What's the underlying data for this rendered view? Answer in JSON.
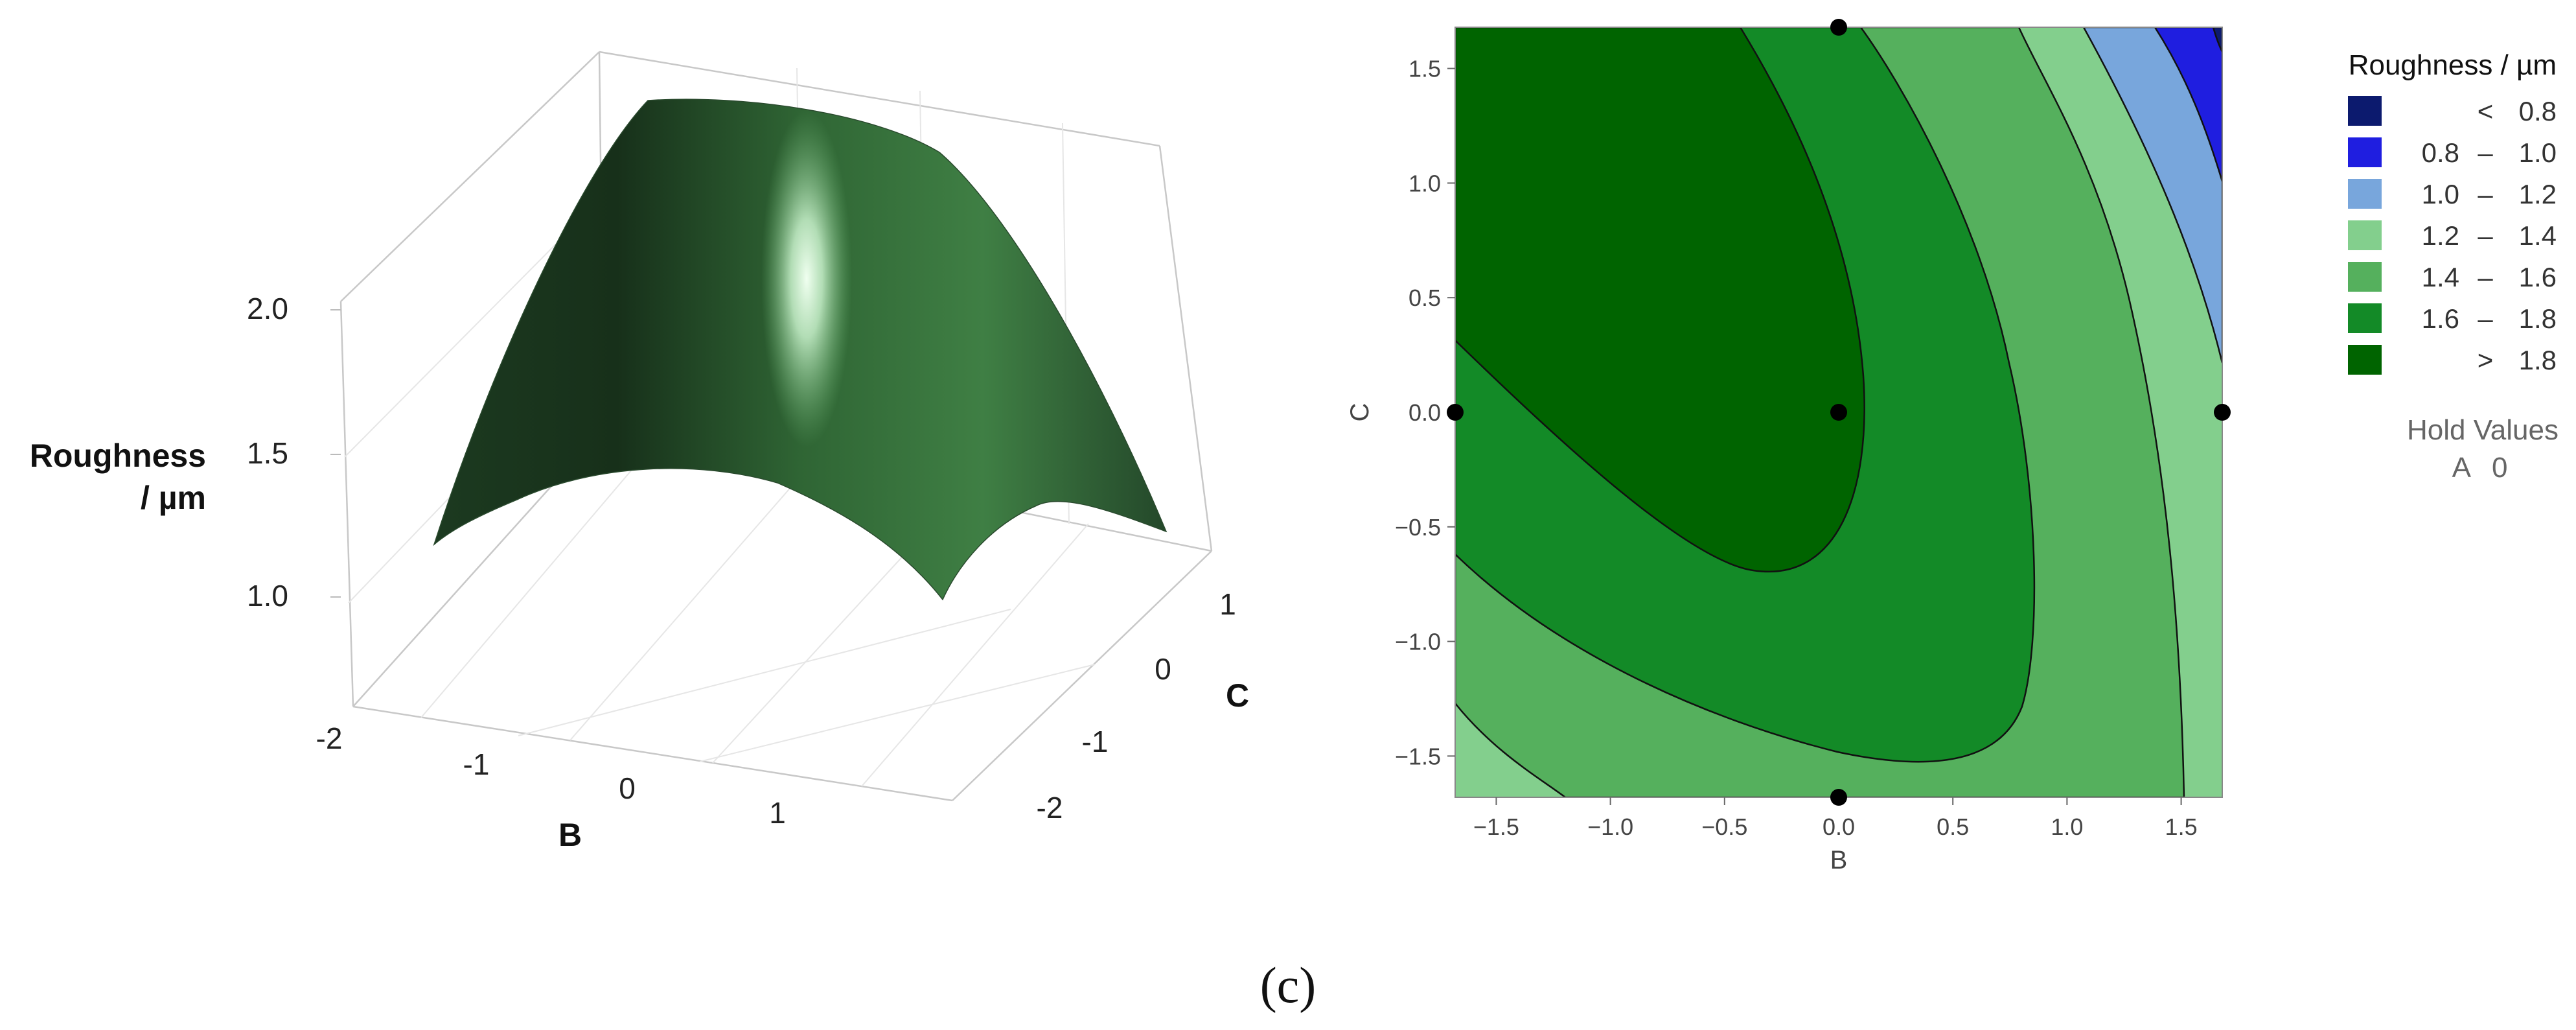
{
  "caption": "(c)",
  "chart_data": [
    {
      "type": "surface",
      "zlabel": "Roughness / µm",
      "xlabel": "B",
      "ylabel": "C",
      "x_ticks": [
        "-2",
        "-1",
        "0",
        "1"
      ],
      "y_ticks": [
        "-2",
        "-1",
        "0",
        "1"
      ],
      "z_ticks": [
        "1.0",
        "1.5",
        "2.0"
      ],
      "xlim": [
        -2,
        2
      ],
      "ylim": [
        -2,
        2
      ],
      "zlim": [
        0.8,
        2.2
      ],
      "surface_color": "#3a7a3e",
      "highlight_color": "#e8ffe8",
      "surface_values": {
        "corners": {
          "B-2_C-2": 1.22,
          "B2_C-2": 1.4,
          "B-2_C2": 1.6,
          "B2_C2": 1.3
        },
        "peak": 2.1
      }
    },
    {
      "type": "contour",
      "xlabel": "B",
      "ylabel": "C",
      "x_ticks": [
        "-1.5",
        "-1.0",
        "-0.5",
        "0.0",
        "0.5",
        "1.0",
        "1.5"
      ],
      "y_ticks": [
        "-1.5",
        "-1.0",
        "-0.5",
        "0.0",
        "0.5",
        "1.0",
        "1.5"
      ],
      "xlim": [
        -1.68,
        1.68
      ],
      "ylim": [
        -1.68,
        1.68
      ],
      "legend": {
        "title": "Roughness / µm",
        "placement": "right",
        "entries": [
          {
            "op": "<",
            "lo": "",
            "hi": "0.8",
            "color": "#0c1a6e"
          },
          {
            "op": "–",
            "lo": "0.8",
            "hi": "1.0",
            "color": "#1f1ee0"
          },
          {
            "op": "–",
            "lo": "1.0",
            "hi": "1.2",
            "color": "#78a6dc"
          },
          {
            "op": "–",
            "lo": "1.2",
            "hi": "1.4",
            "color": "#83cf8d"
          },
          {
            "op": "–",
            "lo": "1.4",
            "hi": "1.6",
            "color": "#55b05d"
          },
          {
            "op": "–",
            "lo": "1.6",
            "hi": "1.8",
            "color": "#138a27"
          },
          {
            "op": ">",
            "lo": "",
            "hi": "1.8",
            "color": "#006400"
          }
        ]
      },
      "hold_values": {
        "title": "Hold Values",
        "var": "A",
        "value": "0"
      },
      "design_points": [
        {
          "x": 0,
          "y": 1.68
        },
        {
          "x": 0,
          "y": 0
        },
        {
          "x": -1.68,
          "y": 0
        },
        {
          "x": 1.68,
          "y": 0
        },
        {
          "x": 0,
          "y": -1.68
        }
      ]
    }
  ]
}
